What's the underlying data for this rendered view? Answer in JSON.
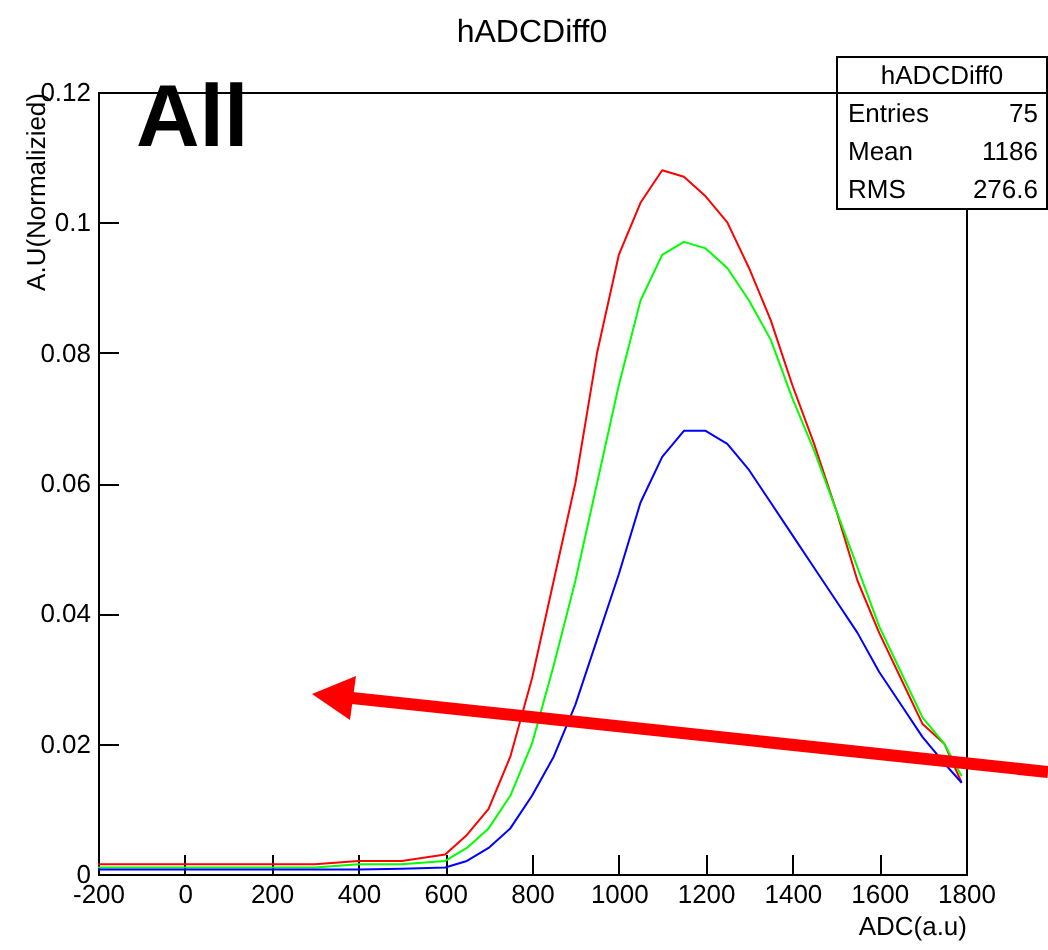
{
  "chart_data": {
    "type": "line",
    "title": "hADCDiff0",
    "xlabel": "ADC(a.u)",
    "ylabel": "A.U(Normalizied)",
    "x": [
      -200,
      -100,
      0,
      100,
      200,
      300,
      400,
      500,
      600,
      650,
      700,
      750,
      800,
      850,
      900,
      950,
      1000,
      1050,
      1100,
      1150,
      1200,
      1250,
      1300,
      1350,
      1400,
      1450,
      1500,
      1550,
      1600,
      1650,
      1700,
      1750,
      1790
    ],
    "series": [
      {
        "color": "#ff0000",
        "values": [
          0.0015,
          0.0015,
          0.0015,
          0.0015,
          0.0015,
          0.0015,
          0.002,
          0.002,
          0.003,
          0.006,
          0.01,
          0.018,
          0.03,
          0.045,
          0.06,
          0.08,
          0.095,
          0.103,
          0.108,
          0.107,
          0.104,
          0.1,
          0.093,
          0.085,
          0.075,
          0.066,
          0.056,
          0.045,
          0.037,
          0.03,
          0.023,
          0.02,
          0.014
        ]
      },
      {
        "color": "#00ff00",
        "values": [
          0.001,
          0.001,
          0.001,
          0.001,
          0.001,
          0.001,
          0.0015,
          0.0015,
          0.002,
          0.004,
          0.007,
          0.012,
          0.02,
          0.032,
          0.045,
          0.06,
          0.075,
          0.088,
          0.095,
          0.097,
          0.096,
          0.093,
          0.088,
          0.082,
          0.073,
          0.065,
          0.056,
          0.047,
          0.038,
          0.031,
          0.024,
          0.02,
          0.015
        ]
      },
      {
        "color": "#0000ff",
        "values": [
          0.0007,
          0.0007,
          0.0007,
          0.0007,
          0.0007,
          0.0007,
          0.0007,
          0.0008,
          0.001,
          0.002,
          0.004,
          0.007,
          0.012,
          0.018,
          0.026,
          0.036,
          0.046,
          0.057,
          0.064,
          0.068,
          0.068,
          0.066,
          0.062,
          0.057,
          0.052,
          0.047,
          0.042,
          0.037,
          0.031,
          0.026,
          0.021,
          0.017,
          0.014
        ]
      }
    ],
    "xlim": [
      -200,
      1800
    ],
    "xticks": [
      -200,
      0,
      200,
      400,
      600,
      800,
      1000,
      1200,
      1400,
      1600,
      1800
    ],
    "ylim": [
      0,
      0.12
    ],
    "yticks": [
      0,
      0.02,
      0.04,
      0.06,
      0.08,
      0.1,
      0.12
    ],
    "grid": false,
    "legend": false,
    "marker": "none",
    "line_style": "solid",
    "annotations": [
      "All",
      "hADCDiff0",
      "Entries",
      "75",
      "Mean",
      "1186",
      "RMS",
      "276.6"
    ]
  }
}
